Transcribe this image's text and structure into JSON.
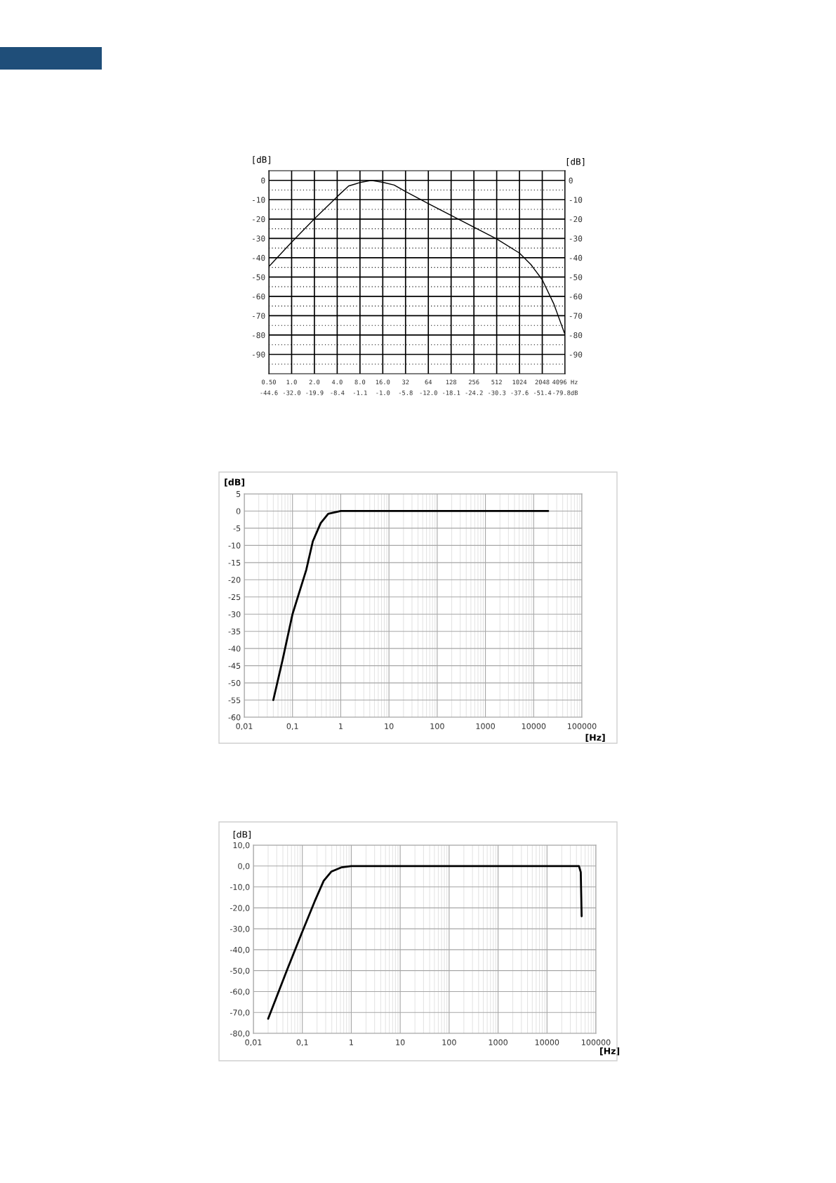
{
  "chart_data": [
    {
      "type": "line",
      "ylabel": "[dB]",
      "y2label": "[dB]",
      "log": "x",
      "grid": true,
      "color": "#000000",
      "x": [
        0.5,
        1,
        2,
        4,
        5.66,
        8,
        11.3,
        16,
        22.6,
        32,
        64,
        128,
        256,
        512,
        1024,
        1448,
        2048,
        2896,
        4096
      ],
      "values": [
        -44.6,
        -32.0,
        -19.9,
        -8.4,
        -2.9,
        -1.1,
        0,
        -1.0,
        -2.4,
        -5.8,
        -12.0,
        -18.1,
        -24.2,
        -30.3,
        -37.6,
        -43.5,
        -51.4,
        -63.7,
        -79.8
      ],
      "xlim": [
        0.5,
        4096
      ],
      "xticks": [
        {
          "value": 0.5,
          "label": "0.50"
        },
        {
          "value": 1,
          "label": "1.0"
        },
        {
          "value": 2,
          "label": "2.0"
        },
        {
          "value": 4,
          "label": "4.0"
        },
        {
          "value": 8,
          "label": "8.0"
        },
        {
          "value": 16,
          "label": "16.0"
        },
        32,
        64,
        128,
        256,
        512,
        1024,
        2048,
        {
          "value": 4096,
          "label": "4096 Hz"
        }
      ],
      "annotations": [
        "-44.6",
        "-32.0",
        "-19.9",
        "-8.4",
        "-1.1",
        "-1.0",
        "-5.8",
        "-12.0",
        "-18.1",
        "-24.2",
        "-30.3",
        "-37.6",
        "-51.4",
        "-79.8dB"
      ],
      "ylim": [
        -100,
        5
      ],
      "yticks": [
        0,
        -10,
        -20,
        -30,
        -40,
        -50,
        -60,
        -70,
        -80,
        -90,
        {
          "value": -5,
          "label": null
        },
        {
          "value": -15,
          "label": null
        },
        {
          "value": -25,
          "label": null
        },
        {
          "value": -35,
          "label": null
        },
        {
          "value": -45,
          "label": null
        },
        {
          "value": -55,
          "label": null
        },
        {
          "value": -65,
          "label": null
        },
        {
          "value": -75,
          "label": null
        },
        {
          "value": -85,
          "label": null
        },
        {
          "value": -95,
          "label": null
        }
      ],
      "y2lim": [
        -100,
        5
      ],
      "y2ticks": [
        0,
        -10,
        -20,
        -30,
        -40,
        -50,
        -60,
        -70,
        -80,
        -90
      ]
    },
    {
      "type": "line",
      "ylabel": "[dB]",
      "xlabel": "[Hz]",
      "log": "x",
      "grid": true,
      "color": "#000000",
      "x": [
        0.04,
        0.063,
        0.1,
        0.193,
        0.264,
        0.384,
        0.55,
        1,
        10,
        100,
        1000,
        10000,
        20000
      ],
      "values": [
        -55,
        -43,
        -30,
        -17.1,
        -8.8,
        -3.5,
        -0.8,
        0,
        0,
        0,
        0,
        0,
        0
      ],
      "xlim": [
        0.01,
        100000
      ],
      "xticks": [
        {
          "value": 0.01,
          "label": "0,01"
        },
        {
          "value": 0.1,
          "label": "0,1"
        },
        1,
        10,
        100,
        1000,
        10000,
        100000,
        {
          "value": 0.02,
          "label": null
        },
        {
          "value": 0.03,
          "label": null
        },
        {
          "value": 0.04,
          "label": null
        },
        {
          "value": 0.05,
          "label": null
        },
        {
          "value": 0.06,
          "label": null
        },
        {
          "value": 0.07,
          "label": null
        },
        {
          "value": 0.08,
          "label": null
        },
        {
          "value": 0.09,
          "label": null
        },
        {
          "value": 0.2,
          "label": null
        },
        {
          "value": 0.3,
          "label": null
        },
        {
          "value": 0.4,
          "label": null
        },
        {
          "value": 0.5,
          "label": null
        },
        {
          "value": 0.6,
          "label": null
        },
        {
          "value": 0.7,
          "label": null
        },
        {
          "value": 0.8,
          "label": null
        },
        {
          "value": 0.9,
          "label": null
        },
        {
          "value": 2,
          "label": null
        },
        {
          "value": 3,
          "label": null
        },
        {
          "value": 4,
          "label": null
        },
        {
          "value": 5,
          "label": null
        },
        {
          "value": 6,
          "label": null
        },
        {
          "value": 7,
          "label": null
        },
        {
          "value": 8,
          "label": null
        },
        {
          "value": 9,
          "label": null
        },
        {
          "value": 20,
          "label": null
        },
        {
          "value": 30,
          "label": null
        },
        {
          "value": 40,
          "label": null
        },
        {
          "value": 50,
          "label": null
        },
        {
          "value": 60,
          "label": null
        },
        {
          "value": 70,
          "label": null
        },
        {
          "value": 80,
          "label": null
        },
        {
          "value": 90,
          "label": null
        },
        {
          "value": 200,
          "label": null
        },
        {
          "value": 300,
          "label": null
        },
        {
          "value": 400,
          "label": null
        },
        {
          "value": 500,
          "label": null
        },
        {
          "value": 600,
          "label": null
        },
        {
          "value": 700,
          "label": null
        },
        {
          "value": 800,
          "label": null
        },
        {
          "value": 900,
          "label": null
        },
        {
          "value": 2000,
          "label": null
        },
        {
          "value": 3000,
          "label": null
        },
        {
          "value": 4000,
          "label": null
        },
        {
          "value": 5000,
          "label": null
        },
        {
          "value": 6000,
          "label": null
        },
        {
          "value": 7000,
          "label": null
        },
        {
          "value": 8000,
          "label": null
        },
        {
          "value": 9000,
          "label": null
        },
        {
          "value": 20000,
          "label": null
        },
        {
          "value": 30000,
          "label": null
        },
        {
          "value": 40000,
          "label": null
        },
        {
          "value": 50000,
          "label": null
        },
        {
          "value": 60000,
          "label": null
        },
        {
          "value": 70000,
          "label": null
        },
        {
          "value": 80000,
          "label": null
        },
        {
          "value": 90000,
          "label": null
        }
      ],
      "ylim": [
        -60,
        5
      ],
      "yticks": [
        5,
        0,
        -5,
        -10,
        -15,
        -20,
        -25,
        -30,
        -35,
        -40,
        -45,
        -50,
        -55,
        -60
      ]
    },
    {
      "type": "line",
      "ylabel": "[dB]",
      "xlabel": "[Hz]",
      "log": "x",
      "grid": true,
      "color": "#000000",
      "x": [
        0.02,
        0.049,
        0.1,
        0.178,
        0.273,
        0.39,
        0.64,
        1,
        10,
        100,
        1000,
        10000,
        45000,
        49000,
        51000
      ],
      "values": [
        -73,
        -49.5,
        -31.4,
        -17,
        -7.1,
        -2.7,
        -0.6,
        0,
        0,
        0,
        0,
        0,
        0,
        -3,
        -24
      ],
      "xlim": [
        0.01,
        100000
      ],
      "xticks": [
        {
          "value": 0.01,
          "label": "0,01"
        },
        {
          "value": 0.1,
          "label": "0,1"
        },
        1,
        10,
        100,
        1000,
        10000,
        100000,
        {
          "value": 0.02,
          "label": null
        },
        {
          "value": 0.03,
          "label": null
        },
        {
          "value": 0.04,
          "label": null
        },
        {
          "value": 0.05,
          "label": null
        },
        {
          "value": 0.06,
          "label": null
        },
        {
          "value": 0.07,
          "label": null
        },
        {
          "value": 0.08,
          "label": null
        },
        {
          "value": 0.09,
          "label": null
        },
        {
          "value": 0.2,
          "label": null
        },
        {
          "value": 0.3,
          "label": null
        },
        {
          "value": 0.4,
          "label": null
        },
        {
          "value": 0.5,
          "label": null
        },
        {
          "value": 0.6,
          "label": null
        },
        {
          "value": 0.7,
          "label": null
        },
        {
          "value": 0.8,
          "label": null
        },
        {
          "value": 0.9,
          "label": null
        },
        {
          "value": 2,
          "label": null
        },
        {
          "value": 3,
          "label": null
        },
        {
          "value": 4,
          "label": null
        },
        {
          "value": 5,
          "label": null
        },
        {
          "value": 6,
          "label": null
        },
        {
          "value": 7,
          "label": null
        },
        {
          "value": 8,
          "label": null
        },
        {
          "value": 9,
          "label": null
        },
        {
          "value": 20,
          "label": null
        },
        {
          "value": 30,
          "label": null
        },
        {
          "value": 40,
          "label": null
        },
        {
          "value": 50,
          "label": null
        },
        {
          "value": 60,
          "label": null
        },
        {
          "value": 70,
          "label": null
        },
        {
          "value": 80,
          "label": null
        },
        {
          "value": 90,
          "label": null
        },
        {
          "value": 200,
          "label": null
        },
        {
          "value": 300,
          "label": null
        },
        {
          "value": 400,
          "label": null
        },
        {
          "value": 500,
          "label": null
        },
        {
          "value": 600,
          "label": null
        },
        {
          "value": 700,
          "label": null
        },
        {
          "value": 800,
          "label": null
        },
        {
          "value": 900,
          "label": null
        },
        {
          "value": 2000,
          "label": null
        },
        {
          "value": 3000,
          "label": null
        },
        {
          "value": 4000,
          "label": null
        },
        {
          "value": 5000,
          "label": null
        },
        {
          "value": 6000,
          "label": null
        },
        {
          "value": 7000,
          "label": null
        },
        {
          "value": 8000,
          "label": null
        },
        {
          "value": 9000,
          "label": null
        },
        {
          "value": 20000,
          "label": null
        },
        {
          "value": 30000,
          "label": null
        },
        {
          "value": 40000,
          "label": null
        },
        {
          "value": 50000,
          "label": null
        },
        {
          "value": 60000,
          "label": null
        },
        {
          "value": 70000,
          "label": null
        },
        {
          "value": 80000,
          "label": null
        },
        {
          "value": 90000,
          "label": null
        }
      ],
      "ylim": [
        -80,
        10
      ],
      "yticks": [
        {
          "value": 10,
          "label": "10,0"
        },
        {
          "value": 0,
          "label": "0,0"
        },
        {
          "value": -10,
          "label": "-10,0"
        },
        {
          "value": -20,
          "label": "-20,0"
        },
        {
          "value": -30,
          "label": "-30,0"
        },
        {
          "value": -40,
          "label": "-40,0"
        },
        {
          "value": -50,
          "label": "-50,0"
        },
        {
          "value": -60,
          "label": "-60,0"
        },
        {
          "value": -70,
          "label": "-70,0"
        },
        {
          "value": -80,
          "label": "-80,0"
        }
      ]
    }
  ]
}
